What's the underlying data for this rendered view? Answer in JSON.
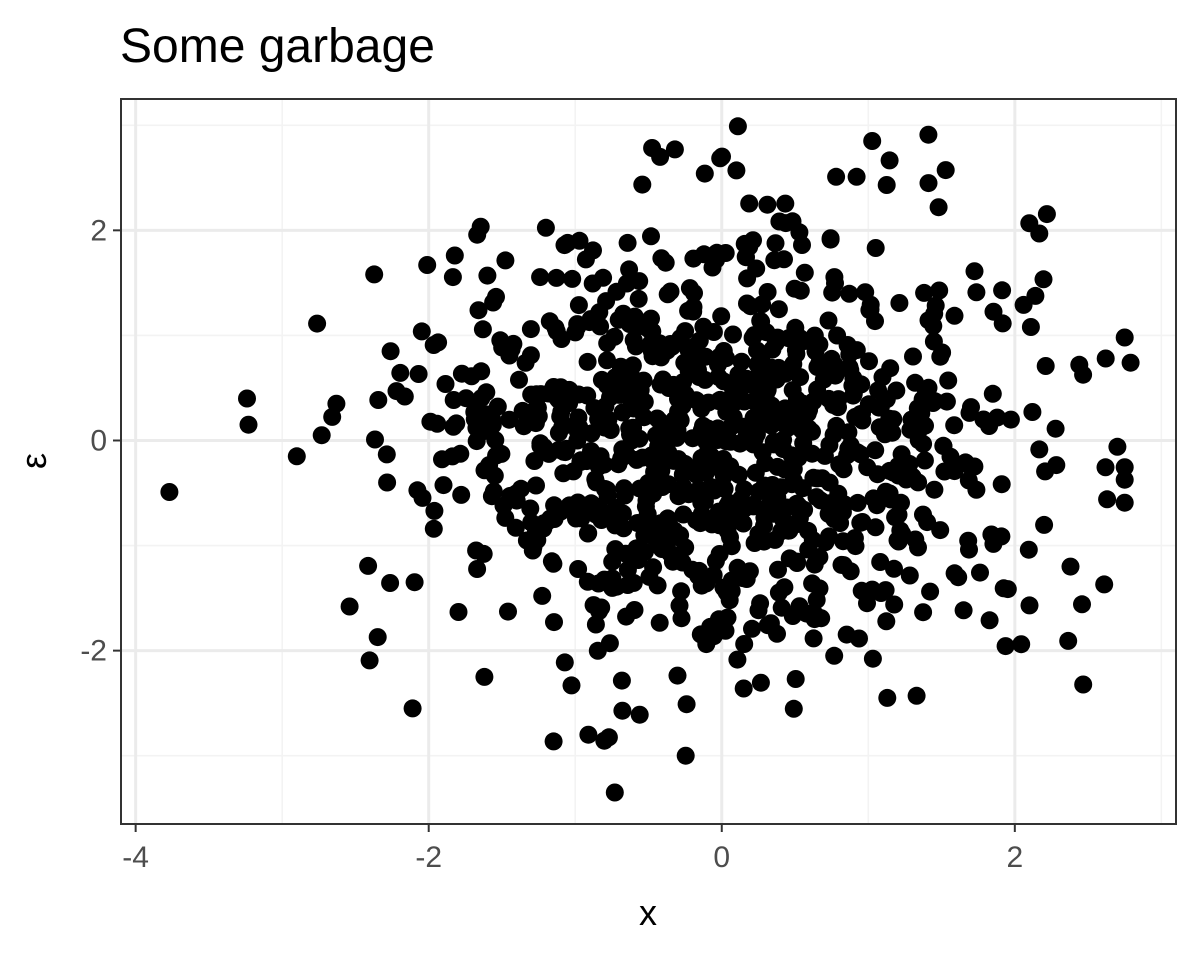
{
  "chart_data": {
    "type": "scatter",
    "title": "Some garbage",
    "xlabel": "x",
    "ylabel": "ε",
    "xlim": [
      -4.1,
      3.1
    ],
    "ylim": [
      -3.65,
      3.25
    ],
    "x_ticks": [
      -4,
      -2,
      0,
      2
    ],
    "y_ticks": [
      -2,
      0,
      2
    ],
    "x_tick_labels": [
      "-4",
      "-2",
      "0",
      "2"
    ],
    "y_tick_labels": [
      "-2",
      "0",
      "2"
    ],
    "grid": true,
    "point_color": "#000000",
    "n_points": 1000,
    "x_distribution": {
      "family": "normal",
      "mean": 0,
      "sd": 1
    },
    "y_distribution": {
      "family": "normal",
      "mean": 0,
      "sd": 1
    },
    "highlighted_points": [
      {
        "x": -3.77,
        "y": -0.49
      },
      {
        "x": -3.24,
        "y": 0.4
      },
      {
        "x": -3.23,
        "y": 0.15
      },
      {
        "x": -2.73,
        "y": 0.05
      },
      {
        "x": -2.63,
        "y": 0.35
      },
      {
        "x": -2.54,
        "y": -1.58
      },
      {
        "x": -2.11,
        "y": -2.55
      },
      {
        "x": -1.62,
        "y": -2.25
      },
      {
        "x": -0.91,
        "y": -2.8
      },
      {
        "x": -0.73,
        "y": -3.35
      },
      {
        "x": -0.56,
        "y": -2.61
      },
      {
        "x": -0.24,
        "y": -2.51
      },
      {
        "x": 0.15,
        "y": -2.36
      },
      {
        "x": 1.13,
        "y": -2.45
      },
      {
        "x": 1.33,
        "y": -2.43
      },
      {
        "x": -0.32,
        "y": 2.77
      },
      {
        "x": 0.11,
        "y": 2.99
      },
      {
        "x": 1.41,
        "y": 2.91
      },
      {
        "x": 0.1,
        "y": 2.57
      },
      {
        "x": 0.78,
        "y": 2.51
      },
      {
        "x": 0.92,
        "y": 2.51
      },
      {
        "x": 1.48,
        "y": 2.22
      },
      {
        "x": -2.01,
        "y": 1.67
      },
      {
        "x": -2.26,
        "y": 0.85
      },
      {
        "x": 2.79,
        "y": 0.74
      },
      {
        "x": 2.62,
        "y": 0.78
      },
      {
        "x": 2.44,
        "y": 0.72
      },
      {
        "x": 2.7,
        "y": -0.06
      },
      {
        "x": 2.63,
        "y": -0.56
      },
      {
        "x": 2.61,
        "y": -1.37
      },
      {
        "x": 2.38,
        "y": -1.2
      },
      {
        "x": 2.1,
        "y": -1.57
      },
      {
        "x": 2.06,
        "y": 1.29
      },
      {
        "x": 2.11,
        "y": 1.08
      }
    ]
  }
}
